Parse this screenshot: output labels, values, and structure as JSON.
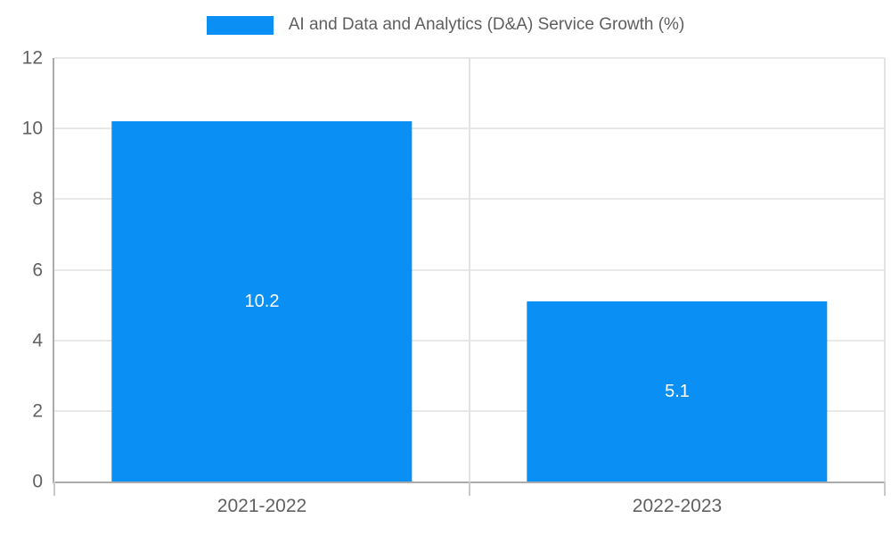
{
  "chart_data": {
    "type": "bar",
    "title": "",
    "legend": [
      {
        "label": "AI and Data and Analytics (D&A) Service Growth (%)",
        "color": "#0a90f5"
      }
    ],
    "legend_position": "top",
    "categories": [
      "2021-2022",
      "2022-2023"
    ],
    "series": [
      {
        "name": "AI and Data and Analytics (D&A) Service Growth (%)",
        "values": [
          10.2,
          5.1
        ]
      }
    ],
    "value_labels": [
      "10.2",
      "5.1"
    ],
    "xlabel": "",
    "ylabel": "",
    "ylim": [
      0,
      12
    ],
    "yticks": [
      0,
      2,
      4,
      6,
      8,
      10,
      12
    ],
    "grid": true
  },
  "colors": {
    "bar": "#0a90f5",
    "gridline": "#e8e8e8",
    "boundary_line": "#e3e3e3",
    "axis_line": "#ababab",
    "axis_tick": "#c9c9c9",
    "tick_text": "#616161",
    "legend_text": "#5f5f5f",
    "value_text": "#ffffff",
    "background": "#ffffff"
  }
}
